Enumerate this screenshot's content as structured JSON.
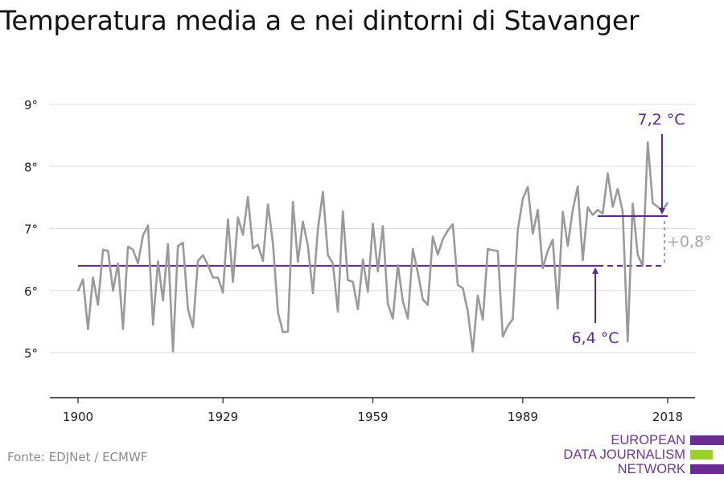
{
  "title": "Temperatura media a e nei dintorni di Stavanger",
  "source": "Fonte: EDJNet / ECMWF",
  "logo": {
    "lines": [
      "EUROPEAN",
      "DATA JOURNALISM",
      "NETWORK"
    ],
    "colors": [
      "#6b2c91",
      "#9bd12a",
      "#6b2c91"
    ]
  },
  "chart_data": {
    "type": "line",
    "x": [
      1900,
      1901,
      1902,
      1903,
      1904,
      1905,
      1906,
      1907,
      1908,
      1909,
      1910,
      1911,
      1912,
      1913,
      1914,
      1915,
      1916,
      1917,
      1918,
      1919,
      1920,
      1921,
      1922,
      1923,
      1924,
      1925,
      1926,
      1927,
      1928,
      1929,
      1930,
      1931,
      1932,
      1933,
      1934,
      1935,
      1936,
      1937,
      1938,
      1939,
      1940,
      1941,
      1942,
      1943,
      1944,
      1945,
      1946,
      1947,
      1948,
      1949,
      1950,
      1951,
      1952,
      1953,
      1954,
      1955,
      1956,
      1957,
      1958,
      1959,
      1960,
      1961,
      1962,
      1963,
      1964,
      1965,
      1966,
      1967,
      1968,
      1969,
      1970,
      1971,
      1972,
      1973,
      1974,
      1975,
      1976,
      1977,
      1978,
      1979,
      1980,
      1981,
      1982,
      1983,
      1984,
      1985,
      1986,
      1987,
      1988,
      1989,
      1990,
      1991,
      1992,
      1993,
      1994,
      1995,
      1996,
      1997,
      1998,
      1999,
      2000,
      2001,
      2002,
      2003,
      2004,
      2005,
      2006,
      2007,
      2008,
      2009,
      2010,
      2011,
      2012,
      2013,
      2014,
      2015,
      2016,
      2017,
      2018
    ],
    "series": [
      {
        "values": [
          5.99,
          6.18,
          5.38,
          6.21,
          5.77,
          6.66,
          6.64,
          6.0,
          6.44,
          5.38,
          6.71,
          6.66,
          6.44,
          6.89,
          7.05,
          5.45,
          6.47,
          5.84,
          6.75,
          5.02,
          6.72,
          6.77,
          5.7,
          5.41,
          6.48,
          6.57,
          6.41,
          6.21,
          6.21,
          5.97,
          7.15,
          6.14,
          7.18,
          6.9,
          7.51,
          6.68,
          6.74,
          6.48,
          7.39,
          6.76,
          5.65,
          5.33,
          5.34,
          7.43,
          6.46,
          7.11,
          6.73,
          5.96,
          6.99,
          7.59,
          6.57,
          6.44,
          5.66,
          7.28,
          6.17,
          6.14,
          5.7,
          6.5,
          5.98,
          7.08,
          6.31,
          7.04,
          5.79,
          5.55,
          6.41,
          5.83,
          5.55,
          6.67,
          6.29,
          5.86,
          5.77,
          6.87,
          6.58,
          6.83,
          6.97,
          7.07,
          6.09,
          6.04,
          5.67,
          5.02,
          5.92,
          5.53,
          6.67,
          6.65,
          6.64,
          5.26,
          5.43,
          5.54,
          6.97,
          7.48,
          7.67,
          6.92,
          7.3,
          6.36,
          6.64,
          6.82,
          5.71,
          7.27,
          6.72,
          7.3,
          7.68,
          6.49,
          7.34,
          7.22,
          7.3,
          7.24,
          7.89,
          7.35,
          7.64,
          7.27,
          5.18,
          7.4,
          6.58,
          6.4,
          8.39,
          7.41,
          7.35,
          7.3,
          7.42
        ]
      }
    ],
    "averages": {
      "baseline": {
        "value": 6.4,
        "label": "6,4 °C"
      },
      "recent": {
        "value": 7.2,
        "label": "7,2 °C",
        "start": 2004
      },
      "diff_label": "+0,8°"
    },
    "y_ticks": [
      "5°",
      "6°",
      "7°",
      "8°",
      "9°"
    ],
    "y_tick_values": [
      5,
      6,
      7,
      8,
      9
    ],
    "x_ticks": [
      "1900",
      "1929",
      "1959",
      "1989",
      "2018"
    ],
    "x_tick_values": [
      1900,
      1929,
      1959,
      1989,
      2018
    ],
    "ylim": [
      4.3,
      9.2
    ],
    "xlim": [
      1894,
      2023
    ],
    "grid": true,
    "colors": {
      "line": "#9a9a9a",
      "avg": "#5b2a86",
      "diff": "#a8a8a8",
      "grid": "#dddddd"
    }
  }
}
